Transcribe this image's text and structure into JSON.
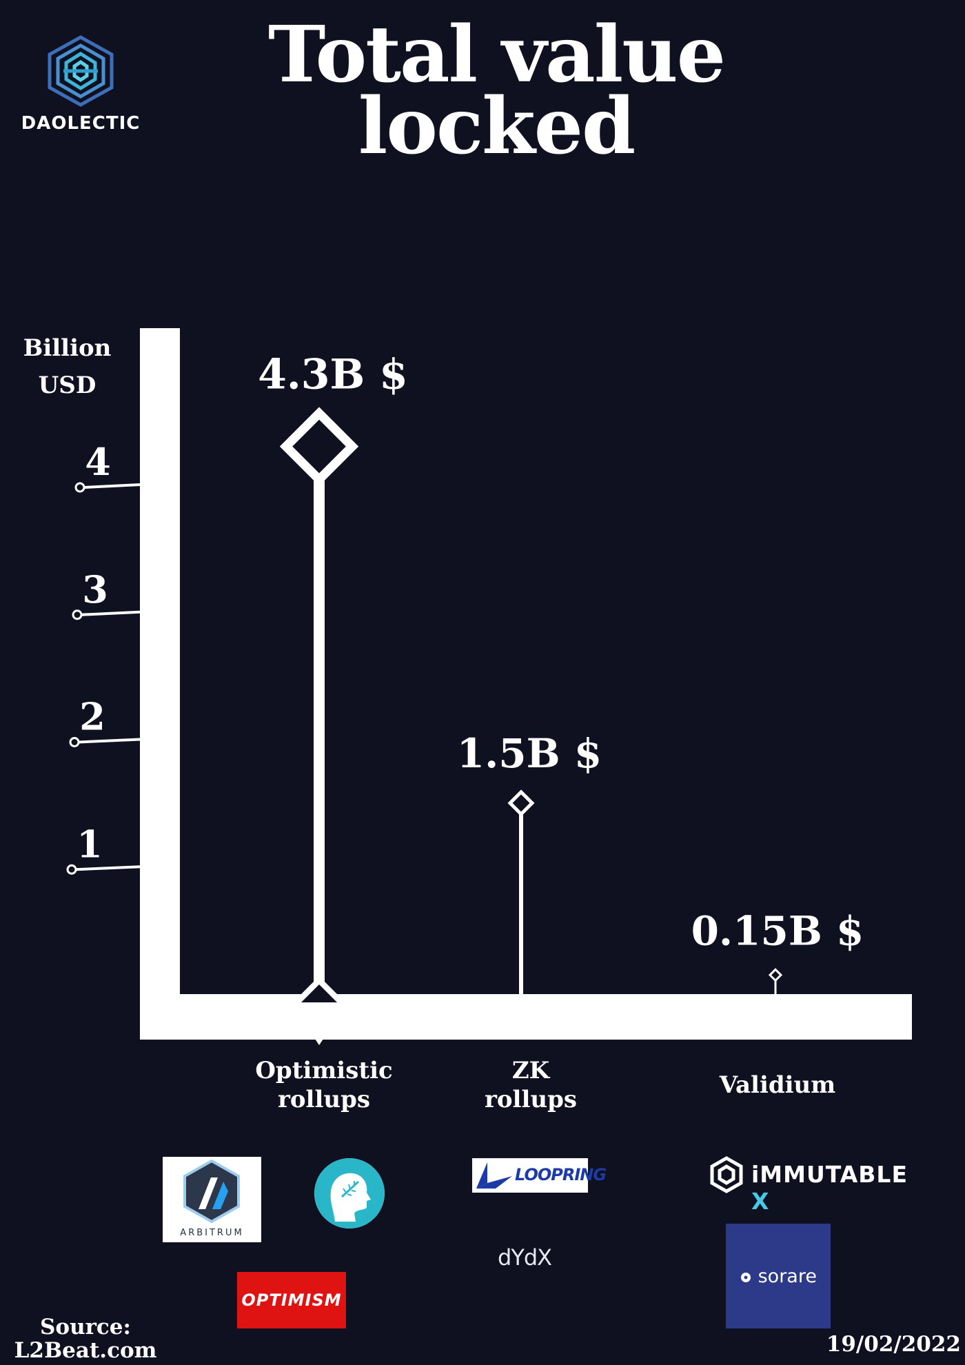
{
  "brand": {
    "logo_text": "DAOLECTIC"
  },
  "chart_data": {
    "type": "lollipop",
    "title": "Total value locked",
    "ylabel": "Billion USD",
    "ylim": [
      0,
      4.3
    ],
    "yticks": [
      1,
      2,
      3,
      4
    ],
    "categories": [
      "Optimistic rollups",
      "ZK rollups",
      "Validium"
    ],
    "values": [
      4.3,
      1.5,
      0.15
    ],
    "data_labels": [
      "4.3B $",
      "1.5B $",
      "0.15B $"
    ]
  },
  "title_lines": [
    "Total value",
    "locked"
  ],
  "y_unit_lines": [
    "Billion",
    "USD"
  ],
  "category_lines": [
    [
      "Optimistic",
      "rollups"
    ],
    [
      "ZK",
      "rollups"
    ],
    [
      "Validium"
    ]
  ],
  "logos": {
    "arbitrum": "ARBITRUM",
    "optimism": "OPTIMISM",
    "loopring": "LOOPRING",
    "dydx": "dYdX",
    "immutable": "iMMUTABLE",
    "immutable_x": "X",
    "sorare": "sorare"
  },
  "footer": {
    "source_lines": [
      "Source:",
      "L2Beat.com"
    ],
    "date": "19/02/2022"
  },
  "colors": {
    "background": "#0f1120",
    "foreground": "#ffffff",
    "optimism_red": "#e01313",
    "sorare_blue": "#2d3a8a",
    "immutable_cyan": "#48c9e8"
  }
}
